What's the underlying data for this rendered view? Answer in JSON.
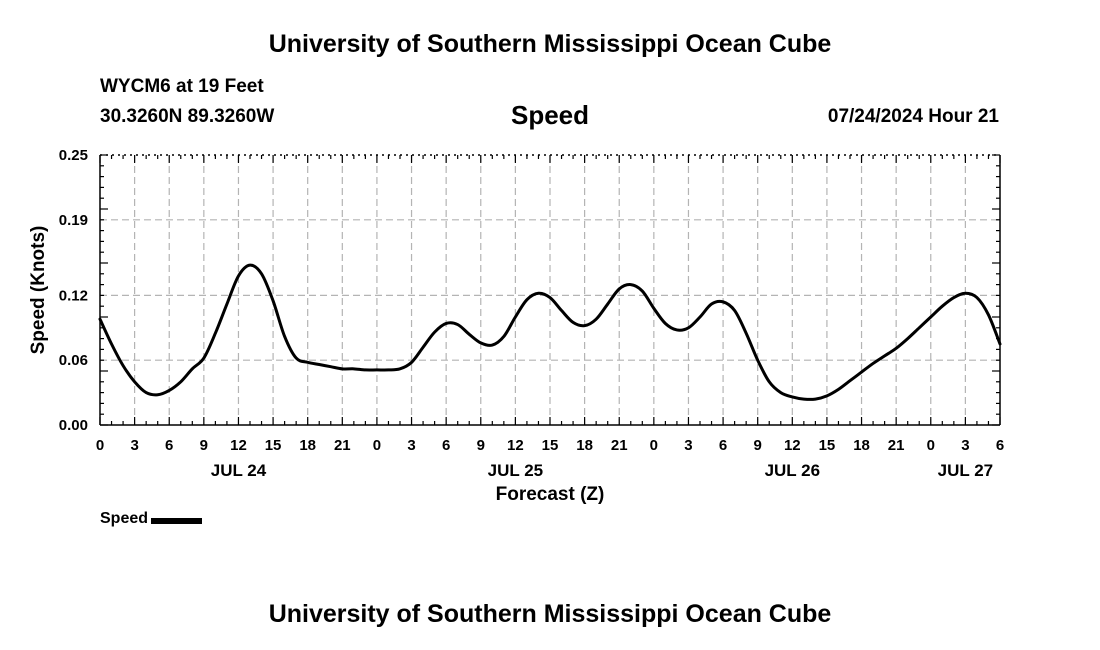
{
  "header": {
    "title": "University of Southern Mississippi Ocean Cube",
    "station": "WYCM6 at 19 Feet",
    "coords": "30.3260N  89.3260W",
    "variable": "Speed",
    "timestamp": "07/24/2024 Hour 21"
  },
  "footer": {
    "title": "University of Southern Mississippi Ocean Cube"
  },
  "legend": {
    "label": "Speed",
    "color": "#000000"
  },
  "chart_data": {
    "type": "line",
    "title": "Speed",
    "xlabel": "Forecast (Z)",
    "ylabel": "Speed (Knots)",
    "xlim": [
      0,
      78
    ],
    "ylim": [
      0,
      0.25
    ],
    "grid": true,
    "yticks": [
      0.0,
      0.06,
      0.12,
      0.19,
      0.25
    ],
    "ytick_labels": [
      "0.00",
      "0.06",
      "0.12",
      "0.19",
      "0.25"
    ],
    "xticks": [
      0,
      3,
      6,
      9,
      12,
      15,
      18,
      21,
      24,
      27,
      30,
      33,
      36,
      39,
      42,
      45,
      48,
      51,
      54,
      57,
      60,
      63,
      66,
      69,
      72,
      75,
      78
    ],
    "xtick_labels": [
      "0",
      "3",
      "6",
      "9",
      "12",
      "15",
      "18",
      "21",
      "0",
      "3",
      "6",
      "9",
      "12",
      "15",
      "18",
      "21",
      "0",
      "3",
      "6",
      "9",
      "12",
      "15",
      "18",
      "21",
      "0",
      "3",
      "6"
    ],
    "date_labels": [
      {
        "x": 12,
        "label": "JUL 24"
      },
      {
        "x": 36,
        "label": "JUL 25"
      },
      {
        "x": 60,
        "label": "JUL 26"
      },
      {
        "x": 75,
        "label": "JUL 27"
      }
    ],
    "series": [
      {
        "name": "Speed",
        "color": "#000000",
        "x": [
          0,
          1,
          2,
          3,
          4,
          5,
          6,
          7,
          8,
          9,
          10,
          11,
          12,
          13,
          14,
          15,
          16,
          17,
          18,
          19,
          20,
          21,
          22,
          23,
          24,
          25,
          26,
          27,
          28,
          29,
          30,
          31,
          32,
          33,
          34,
          35,
          36,
          37,
          38,
          39,
          40,
          41,
          42,
          43,
          44,
          45,
          46,
          47,
          48,
          49,
          50,
          51,
          52,
          53,
          54,
          55,
          56,
          57,
          58,
          59,
          60,
          61,
          62,
          63,
          64,
          65,
          66,
          67,
          68,
          69,
          70,
          71,
          72,
          73,
          74,
          75,
          76,
          77,
          78
        ],
        "values": [
          0.098,
          0.075,
          0.055,
          0.04,
          0.03,
          0.028,
          0.032,
          0.04,
          0.052,
          0.062,
          0.085,
          0.112,
          0.138,
          0.148,
          0.14,
          0.115,
          0.082,
          0.062,
          0.058,
          0.056,
          0.054,
          0.052,
          0.052,
          0.051,
          0.051,
          0.051,
          0.052,
          0.058,
          0.072,
          0.086,
          0.094,
          0.093,
          0.084,
          0.076,
          0.074,
          0.082,
          0.1,
          0.116,
          0.122,
          0.118,
          0.106,
          0.095,
          0.092,
          0.098,
          0.112,
          0.126,
          0.13,
          0.124,
          0.108,
          0.094,
          0.088,
          0.09,
          0.1,
          0.112,
          0.114,
          0.106,
          0.085,
          0.06,
          0.04,
          0.03,
          0.026,
          0.024,
          0.024,
          0.027,
          0.033,
          0.041,
          0.049,
          0.057,
          0.064,
          0.071,
          0.08,
          0.09,
          0.1,
          0.11,
          0.118,
          0.122,
          0.118,
          0.102,
          0.075
        ]
      }
    ]
  }
}
